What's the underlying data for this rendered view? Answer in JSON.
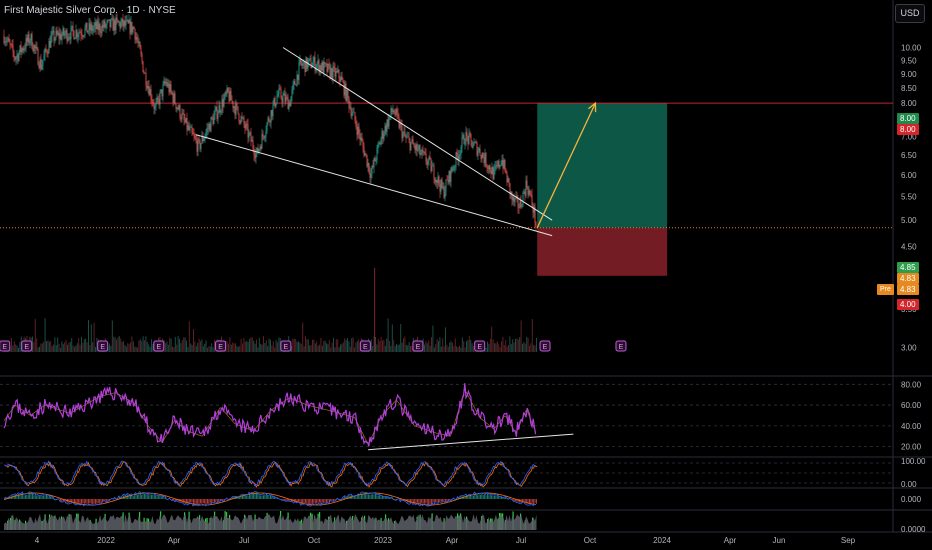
{
  "header": {
    "title": "First Majestic Silver Corp. · 1D · NYSE",
    "currency": "USD"
  },
  "colors": {
    "up": "#26a69a",
    "down": "#ef5350",
    "rsi": "#b23fd8",
    "accent": "#f7b23b",
    "target_zone": "#0d5c4a",
    "stop_zone": "#7a1d25"
  },
  "chart_data": {
    "type": "candlestick",
    "ticker": "First Majestic Silver Corp.",
    "timeframe": "1D",
    "exchange": "NYSE",
    "price_axis": {
      "ylim": [
        3.0,
        10.5
      ],
      "ticks": [
        "10.00",
        "9.50",
        "9.00",
        "8.50",
        "8.00",
        "7.50",
        "7.00",
        "6.50",
        "6.00",
        "5.50",
        "5.00",
        "4.50",
        "4.00",
        "3.50",
        "3.00"
      ]
    },
    "time_axis": {
      "ticks": [
        "4",
        "2022",
        "Apr",
        "Jul",
        "Oct",
        "2023",
        "Apr",
        "Jul",
        "Oct",
        "2024",
        "Apr",
        "Jun",
        "Sep"
      ]
    },
    "price_path": [
      [
        "2021-10-04",
        10.5
      ],
      [
        "2021-10-20",
        9.6
      ],
      [
        "2021-11-10",
        10.4
      ],
      [
        "2021-11-25",
        9.3
      ],
      [
        "2021-12-10",
        10.4
      ],
      [
        "2022-01-05",
        10.6
      ],
      [
        "2022-03-15",
        11.0
      ],
      [
        "2022-04-05",
        10.8
      ],
      [
        "2022-04-20",
        9.0
      ],
      [
        "2022-05-05",
        7.8
      ],
      [
        "2022-05-20",
        8.7
      ],
      [
        "2022-06-15",
        7.4
      ],
      [
        "2022-07-05",
        6.7
      ],
      [
        "2022-07-25",
        7.5
      ],
      [
        "2022-08-15",
        8.3
      ],
      [
        "2022-09-10",
        7.2
      ],
      [
        "2022-09-25",
        6.5
      ],
      [
        "2022-10-10",
        7.4
      ],
      [
        "2022-10-25",
        8.3
      ],
      [
        "2022-11-10",
        8.0
      ],
      [
        "2022-11-25",
        9.3
      ],
      [
        "2022-12-15",
        9.4
      ],
      [
        "2023-01-05",
        9.1
      ],
      [
        "2023-01-20",
        8.9
      ],
      [
        "2023-02-05",
        7.8
      ],
      [
        "2023-02-20",
        6.8
      ],
      [
        "2023-03-05",
        6.0
      ],
      [
        "2023-03-20",
        7.0
      ],
      [
        "2023-04-05",
        7.8
      ],
      [
        "2023-04-20",
        7.0
      ],
      [
        "2023-05-10",
        6.6
      ],
      [
        "2023-05-25",
        6.3
      ],
      [
        "2023-06-15",
        5.6
      ],
      [
        "2023-07-01",
        6.3
      ],
      [
        "2023-07-15",
        7.0
      ],
      [
        "2023-08-05",
        6.6
      ],
      [
        "2023-08-25",
        6.0
      ],
      [
        "2023-09-05",
        6.4
      ],
      [
        "2023-09-20",
        5.4
      ],
      [
        "2023-10-01",
        5.3
      ],
      [
        "2023-10-10",
        5.8
      ],
      [
        "2023-10-20",
        5.2
      ],
      [
        "2023-10-24",
        4.85
      ]
    ],
    "last_price": 4.85,
    "pre_market_price": 4.83,
    "price_labels": {
      "last": "4.85",
      "mid": "4.83",
      "pre": "4.83",
      "pre_tag": "Pre",
      "target": "8.00",
      "target_line": "8.00",
      "stop": "4.00"
    },
    "horizontal_lines": [
      8.0,
      4.85
    ],
    "trendlines": [
      {
        "from": [
          "2022-11-01",
          10.0
        ],
        "to": [
          "2023-11-15",
          5.0
        ]
      },
      {
        "from": [
          "2022-07-01",
          7.05
        ],
        "to": [
          "2023-11-15",
          4.7
        ]
      }
    ],
    "arrow": {
      "from": [
        "2023-10-25",
        4.85
      ],
      "to": [
        "2024-01-15",
        8.0
      ]
    },
    "position_tool": {
      "start": "2023-10-25",
      "end": "2024-04-25",
      "entry": 4.85,
      "target": 8.0,
      "stop": 4.0
    },
    "earnings_markers": [
      "2021-10-05",
      "2021-11-05",
      "2022-02-20",
      "2022-05-10",
      "2022-08-05",
      "2022-11-05",
      "2023-02-25",
      "2023-05-10",
      "2023-08-05",
      "2023-11-05",
      "2024-02-20"
    ],
    "rsi": {
      "ticks": [
        "80.00",
        "60.00",
        "40.00",
        "20.00"
      ],
      "ylim": [
        10,
        88
      ],
      "path": [
        [
          "2021-10-04",
          45
        ],
        [
          "2021-10-20",
          60
        ],
        [
          "2021-11-10",
          50
        ],
        [
          "2021-12-01",
          60
        ],
        [
          "2022-01-05",
          52
        ],
        [
          "2022-02-15",
          68
        ],
        [
          "2022-03-10",
          72
        ],
        [
          "2022-04-05",
          62
        ],
        [
          "2022-04-25",
          40
        ],
        [
          "2022-05-15",
          24
        ],
        [
          "2022-06-01",
          45
        ],
        [
          "2022-06-20",
          35
        ],
        [
          "2022-07-10",
          30
        ],
        [
          "2022-08-05",
          58
        ],
        [
          "2022-08-25",
          42
        ],
        [
          "2022-09-20",
          35
        ],
        [
          "2022-10-15",
          55
        ],
        [
          "2022-11-10",
          67
        ],
        [
          "2022-12-05",
          60
        ],
        [
          "2023-01-10",
          54
        ],
        [
          "2023-02-10",
          48
        ],
        [
          "2023-03-01",
          22
        ],
        [
          "2023-03-20",
          50
        ],
        [
          "2023-04-10",
          65
        ],
        [
          "2023-05-05",
          40
        ],
        [
          "2023-06-05",
          33
        ],
        [
          "2023-06-25",
          30
        ],
        [
          "2023-07-15",
          75
        ],
        [
          "2023-08-05",
          48
        ],
        [
          "2023-08-25",
          37
        ],
        [
          "2023-09-10",
          50
        ],
        [
          "2023-09-25",
          33
        ],
        [
          "2023-10-10",
          56
        ],
        [
          "2023-10-24",
          32
        ]
      ],
      "trendline": {
        "from": [
          "2023-03-01",
          17
        ],
        "to": [
          "2023-12-15",
          32
        ]
      }
    },
    "stochastic": {
      "ticks": [
        "100.00",
        "0.00"
      ]
    },
    "macd": {
      "ticks": [
        "0.000"
      ]
    },
    "volume_osc": {
      "ticks": [
        "0.0000"
      ]
    }
  }
}
